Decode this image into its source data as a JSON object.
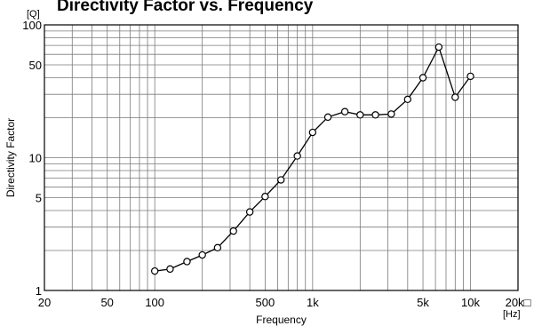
{
  "chart_data": {
    "type": "line",
    "title": "Directivity Factor vs. Frequency",
    "xlabel": "Frequency",
    "ylabel": "Directivity Factor",
    "x_unit": "[Hz]",
    "y_unit": "[Q]",
    "x_scale": "log",
    "y_scale": "log",
    "xlim": [
      20,
      20000
    ],
    "ylim": [
      1,
      100
    ],
    "x_ticks": [
      {
        "value": 20,
        "label": "20"
      },
      {
        "value": 50,
        "label": "50"
      },
      {
        "value": 100,
        "label": "100"
      },
      {
        "value": 500,
        "label": "500"
      },
      {
        "value": 1000,
        "label": "1k"
      },
      {
        "value": 5000,
        "label": "5k"
      },
      {
        "value": 10000,
        "label": "10k"
      },
      {
        "value": 20000,
        "label": "20k□"
      }
    ],
    "y_ticks": [
      {
        "value": 1,
        "label": "1"
      },
      {
        "value": 5,
        "label": "5"
      },
      {
        "value": 10,
        "label": "10"
      },
      {
        "value": 50,
        "label": "50"
      },
      {
        "value": 100,
        "label": "100"
      }
    ],
    "grid": true,
    "marker": "circle",
    "x": [
      100,
      125,
      160,
      200,
      250,
      315,
      400,
      500,
      630,
      800,
      1000,
      1250,
      1600,
      2000,
      2500,
      3150,
      4000,
      5000,
      6300,
      8000,
      10000
    ],
    "y": [
      1.4,
      1.45,
      1.65,
      1.85,
      2.1,
      2.8,
      3.9,
      5.1,
      6.8,
      10.3,
      15.5,
      20.2,
      22.2,
      21.0,
      21.0,
      21.3,
      27.5,
      40.0,
      68.0,
      28.5,
      41.0
    ]
  }
}
